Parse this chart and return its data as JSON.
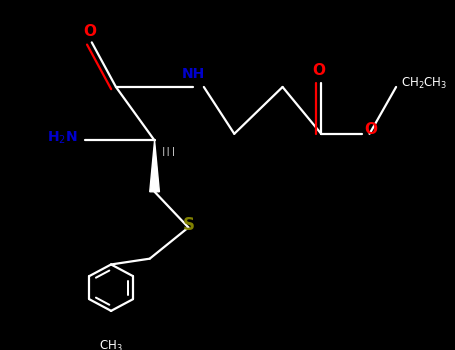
{
  "background_color": "#000000",
  "bond_color": "#ffffff",
  "atom_colors": {
    "O": "#ff0000",
    "N": "#0000cd",
    "S": "#808000",
    "C": "#ffffff",
    "H": "#ffffff"
  },
  "figsize": [
    4.55,
    3.5
  ],
  "dpi": 100,
  "xlim": [
    0,
    9.1
  ],
  "ylim": [
    0,
    7.0
  ]
}
